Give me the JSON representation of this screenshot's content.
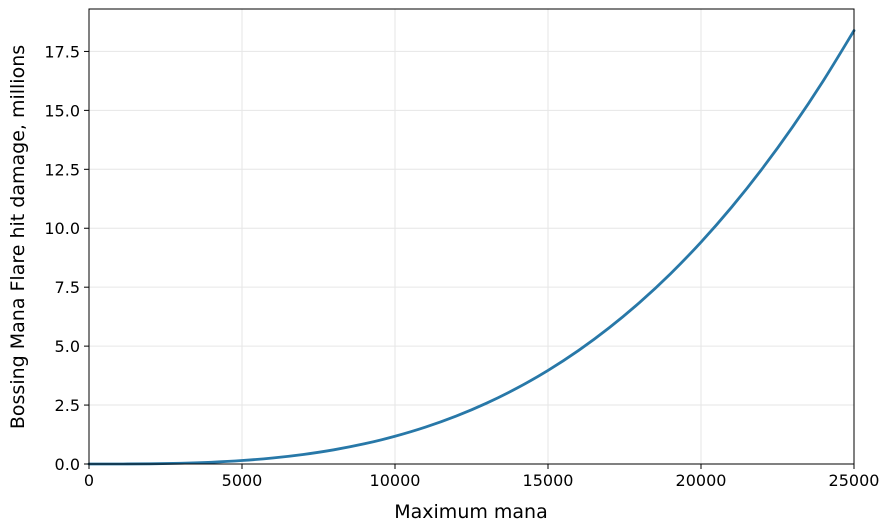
{
  "chart_data": {
    "type": "line",
    "title": "",
    "xlabel": "Maximum mana",
    "ylabel": "Bossing Mana Flare hit damage, millions",
    "xlim": [
      0,
      25000
    ],
    "ylim": [
      0,
      19.3
    ],
    "x_ticks": [
      0,
      5000,
      10000,
      15000,
      20000,
      25000
    ],
    "y_ticks": [
      0.0,
      2.5,
      5.0,
      7.5,
      10.0,
      12.5,
      15.0,
      17.5
    ],
    "x_tick_labels": [
      "0",
      "5000",
      "10000",
      "15000",
      "20000",
      "25000"
    ],
    "y_tick_labels": [
      "0.0",
      "2.5",
      "5.0",
      "7.5",
      "10.0",
      "12.5",
      "15.0",
      "17.5"
    ],
    "grid": true,
    "legend": "none",
    "series": [
      {
        "color": "#2878a8",
        "x": [
          0,
          1000,
          2000,
          3000,
          4000,
          5000,
          6000,
          7000,
          8000,
          9000,
          10000,
          11000,
          12000,
          13000,
          14000,
          15000,
          16000,
          17000,
          18000,
          19000,
          20000,
          21000,
          22000,
          23000,
          24000,
          25000
        ],
        "y": [
          0.0,
          0.001,
          0.009,
          0.032,
          0.075,
          0.147,
          0.254,
          0.404,
          0.602,
          0.857,
          1.176,
          1.565,
          2.032,
          2.584,
          3.227,
          3.969,
          4.817,
          5.778,
          6.859,
          8.067,
          9.41,
          10.894,
          12.526,
          14.314,
          16.264,
          18.384
        ]
      }
    ]
  }
}
